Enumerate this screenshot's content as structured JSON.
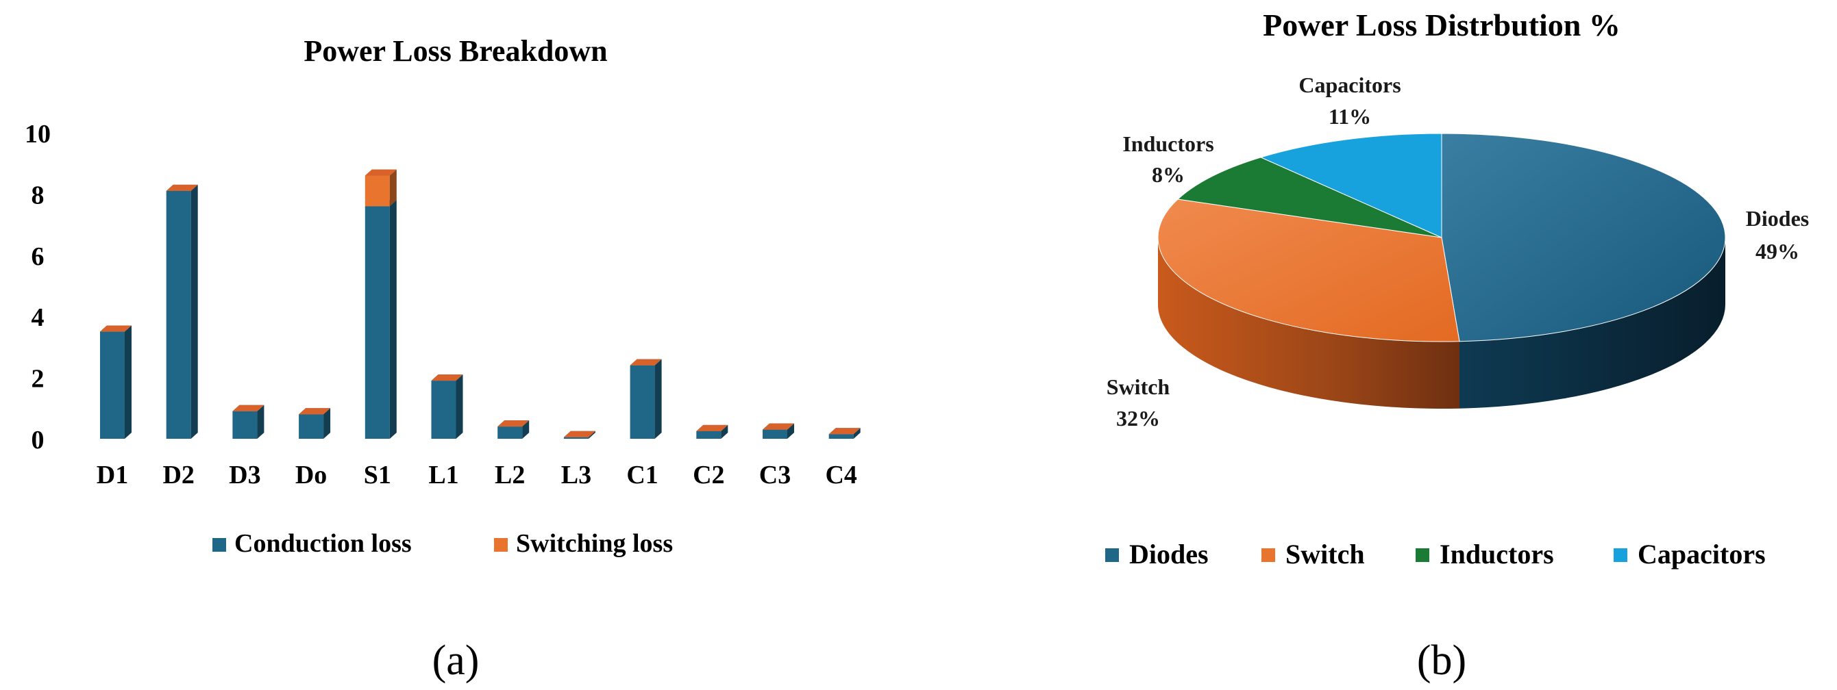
{
  "charts": {
    "bar": {
      "title": "Power Loss Breakdown",
      "panel_label": "(a)",
      "legend": [
        {
          "name": "Conduction loss",
          "color": "#1F6687"
        },
        {
          "name": "Switching loss",
          "color": "#E8742E"
        }
      ]
    },
    "pie": {
      "title": "Power Loss Distrbution %",
      "panel_label": "(b)",
      "legend": [
        {
          "name": "Diodes",
          "color": "#1F6687"
        },
        {
          "name": "Switch",
          "color": "#E8742E"
        },
        {
          "name": "Inductors",
          "color": "#1B7A34"
        },
        {
          "name": "Capacitors",
          "color": "#17A2DE"
        }
      ]
    }
  },
  "chart_data": [
    {
      "type": "bar",
      "stacked": true,
      "title": "Power Loss Breakdown",
      "categories": [
        "D1",
        "D2",
        "D3",
        "Do",
        "S1",
        "L1",
        "L2",
        "L3",
        "C1",
        "C2",
        "C3",
        "C4"
      ],
      "series": [
        {
          "name": "Conduction loss",
          "color": "#1F6687",
          "values": [
            3.5,
            8.1,
            0.9,
            0.8,
            7.6,
            1.9,
            0.4,
            0.05,
            2.4,
            0.25,
            0.3,
            0.15
          ]
        },
        {
          "name": "Switching loss",
          "color": "#E8742E",
          "values": [
            0,
            0,
            0,
            0,
            1.0,
            0,
            0,
            0,
            0,
            0,
            0,
            0
          ]
        }
      ],
      "ylim": [
        0,
        10
      ],
      "yticks": [
        "0",
        "2",
        "4",
        "6",
        "8",
        "10"
      ],
      "legend_position": "bottom"
    },
    {
      "type": "pie",
      "title": "Power Loss Distrbution %",
      "labels": [
        "Diodes",
        "Switch",
        "Inductors",
        "Capacitors"
      ],
      "values": [
        49,
        32,
        8,
        11
      ],
      "value_labels": [
        "49%",
        "32%",
        "8%",
        "11%"
      ],
      "colors": [
        "#1F6687",
        "#E8742E",
        "#1B7A34",
        "#17A2DE"
      ],
      "legend_position": "bottom"
    }
  ]
}
